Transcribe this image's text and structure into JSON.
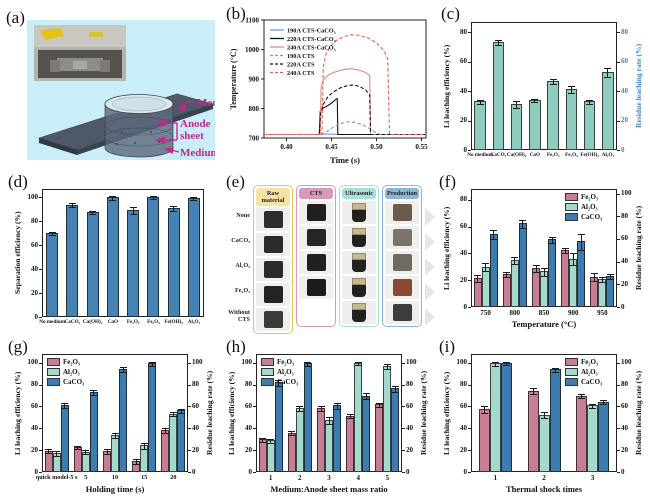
{
  "panels": {
    "a": "(a)",
    "b": "(b)",
    "c": "(c)",
    "d": "(d)",
    "e": "(e)",
    "f": "(f)",
    "g": "(g)",
    "h": "(h)",
    "i": "(i)"
  },
  "colors": {
    "pink": "#c77e95",
    "teal_series": "#a6d9cd",
    "blue_series": "#3d7cb0",
    "teal_single": "#8fccc0",
    "blue_single": "#4682b4",
    "right_axis_blue": "#3f86c0",
    "magenta": "#c4268f",
    "panel_a_bg": "#c9eef8"
  },
  "panel_a": {
    "label_medium_top": "Medium",
    "label_anode_1": "Anode",
    "label_anode_2": "sheet",
    "label_medium_bottom": "Medium"
  },
  "panel_e": {
    "columns": [
      {
        "label": "Raw material",
        "chip": "#f6e2a4",
        "border": "#e8c84a"
      },
      {
        "label": "CTS",
        "chip": "#d898bc",
        "border": "#d898bc"
      },
      {
        "label": "Ultrasonic",
        "chip": "#a8e0d8",
        "border": "#a8e0d8"
      },
      {
        "label": "Production",
        "chip": "#8ab6d8",
        "border": "#8ab6d8"
      }
    ],
    "rows": [
      {
        "label": "None",
        "cells": [
          {
            "kind": "square",
            "color": "#2d2d2b"
          },
          {
            "kind": "square",
            "color": "#1f1f1d"
          },
          {
            "kind": "beaker"
          },
          {
            "kind": "square",
            "color": "#6d5a49"
          }
        ]
      },
      {
        "label": "CaCO₃",
        "cells": [
          {
            "kind": "square",
            "color": "#2b2b29"
          },
          {
            "kind": "square",
            "color": "#262624"
          },
          {
            "kind": "beaker"
          },
          {
            "kind": "square",
            "color": "#7b7468"
          }
        ]
      },
      {
        "label": "Al₂O₃",
        "cells": [
          {
            "kind": "square",
            "color": "#2b2b29"
          },
          {
            "kind": "square",
            "color": "#202020"
          },
          {
            "kind": "beaker"
          },
          {
            "kind": "square",
            "color": "#6f6b61"
          }
        ]
      },
      {
        "label": "Fe₂O₃",
        "cells": [
          {
            "kind": "square",
            "color": "#232321"
          },
          {
            "kind": "square",
            "color": "#1b1b19"
          },
          {
            "kind": "beaker"
          },
          {
            "kind": "square",
            "color": "#8a4a32"
          }
        ]
      },
      {
        "label": "Without CTS",
        "cells": [
          {
            "kind": "square",
            "color": "#3a3a36"
          },
          {
            "kind": "empty"
          },
          {
            "kind": "beaker"
          },
          {
            "kind": "square",
            "color": "#3c3c3a"
          }
        ]
      }
    ]
  },
  "chart_data": [
    {
      "id": "b",
      "type": "line",
      "xlabel": "Time (s)",
      "ylabel": "Temperature (°C)",
      "xlim": [
        0.375,
        0.555
      ],
      "ylim": [
        700,
        1100
      ],
      "xticks": [
        "0.40",
        "0.45",
        "0.50",
        "0.55"
      ],
      "xtickvals": [
        0.4,
        0.45,
        0.5,
        0.55
      ],
      "yticks": [
        700,
        800,
        900,
        1000,
        1100
      ],
      "series": [
        {
          "name": "190A CTS-CaCO₃",
          "color": "#6d9fd3",
          "dash": false,
          "points": [
            [
              0.375,
              712
            ],
            [
              0.436,
              712
            ],
            [
              0.44,
              714
            ],
            [
              0.45,
              713
            ],
            [
              0.46,
              712
            ],
            [
              0.555,
              712
            ]
          ]
        },
        {
          "name": "220A CTS-CaCO₃",
          "color": "#111111",
          "dash": false,
          "points": [
            [
              0.375,
              712
            ],
            [
              0.4365,
              712
            ],
            [
              0.4375,
              790
            ],
            [
              0.44,
              800
            ],
            [
              0.445,
              808
            ],
            [
              0.45,
              818
            ],
            [
              0.4555,
              833
            ],
            [
              0.4565,
              833
            ],
            [
              0.457,
              712
            ],
            [
              0.555,
              712
            ]
          ]
        },
        {
          "name": "240A CTS-CaCO₃",
          "color": "#e08a82",
          "dash": false,
          "points": [
            [
              0.375,
              712
            ],
            [
              0.4375,
              712
            ],
            [
              0.4385,
              870
            ],
            [
              0.441,
              898
            ],
            [
              0.447,
              915
            ],
            [
              0.455,
              925
            ],
            [
              0.465,
              933
            ],
            [
              0.472,
              935
            ],
            [
              0.48,
              931
            ],
            [
              0.488,
              922
            ],
            [
              0.4925,
              912
            ],
            [
              0.4935,
              712
            ],
            [
              0.555,
              712
            ]
          ]
        },
        {
          "name": "190A CTS",
          "color": "#6d9fd3",
          "dash": true,
          "points": [
            [
              0.375,
              712
            ],
            [
              0.4395,
              712
            ],
            [
              0.445,
              722
            ],
            [
              0.452,
              737
            ],
            [
              0.46,
              749
            ],
            [
              0.468,
              755
            ],
            [
              0.476,
              753
            ],
            [
              0.485,
              744
            ],
            [
              0.493,
              731
            ],
            [
              0.5,
              717
            ],
            [
              0.504,
              712
            ],
            [
              0.555,
              712
            ]
          ]
        },
        {
          "name": "220A CTS",
          "color": "#111111",
          "dash": true,
          "points": [
            [
              0.375,
              712
            ],
            [
              0.4365,
              712
            ],
            [
              0.4378,
              780
            ],
            [
              0.441,
              815
            ],
            [
              0.446,
              840
            ],
            [
              0.452,
              856
            ],
            [
              0.46,
              870
            ],
            [
              0.468,
              878
            ],
            [
              0.474,
              880
            ],
            [
              0.481,
              875
            ],
            [
              0.488,
              863
            ],
            [
              0.4925,
              845
            ],
            [
              0.4935,
              712
            ],
            [
              0.555,
              712
            ]
          ]
        },
        {
          "name": "240A CTS",
          "color": "#e2635a",
          "dash": true,
          "points": [
            [
              0.375,
              712
            ],
            [
              0.4395,
              712
            ],
            [
              0.4408,
              940
            ],
            [
              0.444,
              985
            ],
            [
              0.449,
              1012
            ],
            [
              0.456,
              1032
            ],
            [
              0.464,
              1044
            ],
            [
              0.472,
              1050
            ],
            [
              0.48,
              1048
            ],
            [
              0.49,
              1040
            ],
            [
              0.5,
              1023
            ],
            [
              0.508,
              998
            ],
            [
              0.5125,
              968
            ],
            [
              0.5145,
              712
            ],
            [
              0.555,
              712
            ]
          ]
        }
      ]
    },
    {
      "id": "c",
      "type": "bar",
      "catFont": 5.2,
      "categories": [
        "No medium",
        "CaCO₃",
        "Ca(OH)₂",
        "CaO",
        "Fe₂O₃",
        "Fe₃O₄",
        "Fe(OH)₃",
        "Al₂O₃"
      ],
      "series": [
        {
          "name": "",
          "color": "#8fccc0",
          "values": [
            33,
            73.5,
            31,
            34,
            47,
            41.5,
            33,
            53
          ],
          "errs": [
            1.2,
            1.5,
            2,
            1,
            1.2,
            1.8,
            1,
            2.5
          ]
        }
      ],
      "ylimL": 87,
      "yticksL": [
        0,
        20,
        40,
        60,
        80
      ],
      "ytitleL": "Li leaching efficiency (%)",
      "right": {
        "lim": 87,
        "ticks": [
          0,
          20,
          40,
          60,
          80
        ],
        "title": "Residue leaching rate (%)",
        "color": "#3f86c0"
      },
      "xtitle": "",
      "legend": null
    },
    {
      "id": "d",
      "type": "bar",
      "catFont": 5.2,
      "categories": [
        "No medium",
        "CaCO₃",
        "Ca(OH)₂",
        "CaO",
        "Fe₂O₃",
        "Fe₃O₄",
        "Fe(OH)₃",
        "Al₂O₃"
      ],
      "series": [
        {
          "name": "",
          "color": "#4682b4",
          "values": [
            70,
            94,
            88,
            100,
            89.5,
            100,
            91,
            99.5
          ],
          "errs": [
            1,
            1.2,
            1,
            1.5,
            2.5,
            0.8,
            1.5,
            1
          ]
        }
      ],
      "ylimL": 107,
      "yticksL": [
        0,
        20,
        40,
        60,
        80,
        100
      ],
      "ytitleL": "Separation efficiency (%)",
      "right": null,
      "xtitle": "",
      "legend": null
    },
    {
      "id": "f",
      "type": "bar",
      "catFont": 7,
      "categories": [
        "750",
        "800",
        "850",
        "900",
        "950"
      ],
      "series": [
        {
          "name": "Fe₂O₃",
          "color": "#c77e95",
          "values": [
            21.5,
            24.5,
            29,
            42.5,
            22.5
          ],
          "errs": [
            2,
            1.5,
            2,
            1.5,
            2.5
          ]
        },
        {
          "name": "Al₂O₃",
          "color": "#a6d9cd",
          "values": [
            30,
            35,
            26.5,
            36,
            21
          ],
          "errs": [
            2.5,
            2.5,
            2.5,
            4,
            1.5
          ]
        },
        {
          "name": "CaCO₃",
          "color": "#3d7cb0",
          "values": [
            54.5,
            62.5,
            50.5,
            49,
            23
          ],
          "errs": [
            3,
            2.5,
            2,
            5.5,
            1.5
          ]
        }
      ],
      "ylimL": 88,
      "yticksL": [
        0,
        20,
        40,
        60,
        80
      ],
      "ytitleL": "Li leaching efficiency (%)",
      "right": {
        "lim": 104,
        "ticks": [
          0,
          20,
          40,
          60,
          80,
          100
        ],
        "title": "Residue leaching rate (%)",
        "color": "#111111"
      },
      "xtitle": "Temperature (°C)",
      "legend": "tr"
    },
    {
      "id": "g",
      "type": "bar",
      "catFont": 6.2,
      "categories": [
        "quick model-5 s",
        "5",
        "10",
        "15",
        "20"
      ],
      "series": [
        {
          "name": "Fe₂O₃",
          "color": "#c77e95",
          "values": [
            19.5,
            22.5,
            19,
            10,
            38.5
          ],
          "errs": [
            1.5,
            1,
            2,
            2,
            1.5
          ]
        },
        {
          "name": "Al₂O₃",
          "color": "#a6d9cd",
          "values": [
            17.5,
            18.5,
            34,
            24.5,
            53.5
          ],
          "errs": [
            1.5,
            1.5,
            2,
            2.5,
            1.5
          ]
        },
        {
          "name": "CaCO₃",
          "color": "#3d7cb0",
          "values": [
            61.5,
            73,
            94,
            99.5,
            56.5
          ],
          "errs": [
            2,
            2,
            2,
            1.5,
            1.5
          ]
        }
      ],
      "ylimL": 108,
      "yticksL": [
        0,
        20,
        40,
        60,
        80,
        100
      ],
      "ytitleL": "Li leaching efficiency (%)",
      "right": {
        "lim": 108,
        "ticks": [
          0,
          20,
          40,
          60,
          80,
          100
        ],
        "title": "Residue leaching rate (%)",
        "color": "#111111"
      },
      "xtitle": "Holding time (s)",
      "legend": "tl"
    },
    {
      "id": "h",
      "type": "bar",
      "catFont": 7,
      "categories": [
        "1",
        "2",
        "3",
        "4",
        "5"
      ],
      "series": [
        {
          "name": "Fe₂O₃",
          "color": "#c77e95",
          "values": [
            30,
            36,
            58.5,
            51.5,
            62
          ],
          "errs": [
            1.5,
            1.5,
            1.5,
            1.5,
            1.5
          ]
        },
        {
          "name": "Al₂O₃",
          "color": "#a6d9cd",
          "values": [
            29,
            58.5,
            47.5,
            100,
            97
          ],
          "errs": [
            1.5,
            2,
            2.5,
            1,
            1.5
          ]
        },
        {
          "name": "CaCO₃",
          "color": "#3d7cb0",
          "values": [
            82,
            99.5,
            61,
            70,
            76.5
          ],
          "errs": [
            2.5,
            1.5,
            2.5,
            2,
            2
          ]
        }
      ],
      "ylimL": 108,
      "yticksL": [
        0,
        20,
        40,
        60,
        80,
        100
      ],
      "ytitleL": "Li leaching efficiency (%)",
      "right": {
        "lim": 108,
        "ticks": [
          0,
          20,
          40,
          60,
          80,
          100
        ],
        "title": "Residue leaching rate (%)",
        "color": "#111111"
      },
      "xtitle": "Medium:Anode sheet mass ratio",
      "legend": "tl"
    },
    {
      "id": "i",
      "type": "bar",
      "catFont": 7,
      "categories": [
        "1",
        "2",
        "3"
      ],
      "series": [
        {
          "name": "Fe₂O₃",
          "color": "#c77e95",
          "values": [
            57.5,
            74.5,
            70
          ],
          "errs": [
            2.5,
            2,
            1.5
          ]
        },
        {
          "name": "Al₂O₃",
          "color": "#a6d9cd",
          "values": [
            99.5,
            52.5,
            61
          ],
          "errs": [
            1.5,
            2.5,
            1.5
          ]
        },
        {
          "name": "CaCO₃",
          "color": "#3d7cb0",
          "values": [
            99.5,
            94,
            64.5
          ],
          "errs": [
            1,
            1.5,
            1.5
          ]
        }
      ],
      "ylimL": 108,
      "yticksL": [
        0,
        20,
        40,
        60,
        80,
        100
      ],
      "ytitleL": "Li leaching efficiency (%)",
      "right": {
        "lim": 108,
        "ticks": [
          0,
          20,
          40,
          60,
          80,
          100
        ],
        "title": "Residue leaching rate (%)",
        "color": "#111111"
      },
      "xtitle": "Thermal shock times",
      "legend": "tr"
    }
  ]
}
